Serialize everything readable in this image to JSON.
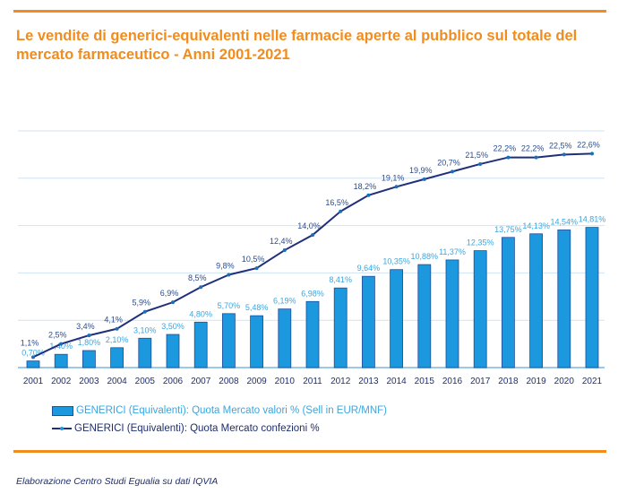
{
  "title": "Le vendite di generici-equivalenti  nelle farmacie aperte al pubblico sul totale del mercato farmaceutico - Anni 2001-2021",
  "footer": "Elaborazione  Centro Studi Egualia  su dati IQVIA",
  "chart_data": {
    "type": "bar+line",
    "categories": [
      "2001",
      "2002",
      "2003",
      "2004",
      "2005",
      "2006",
      "2007",
      "2008",
      "2009",
      "2010",
      "2011",
      "2012",
      "2013",
      "2014",
      "2015",
      "2016",
      "2017",
      "2018",
      "2019",
      "2020",
      "2021"
    ],
    "ylim": [
      0,
      25
    ],
    "grid": true,
    "legend": "bottom",
    "series": [
      {
        "name": "GENERICI (Equivalenti): Quota Mercato valori % (Sell in EUR/MNF)",
        "type": "bar",
        "color": "#1b98de",
        "values": [
          0.7,
          1.4,
          1.8,
          2.1,
          3.1,
          3.5,
          4.8,
          5.7,
          5.48,
          6.19,
          6.98,
          8.41,
          9.64,
          10.35,
          10.88,
          11.37,
          12.35,
          13.75,
          14.13,
          14.54,
          14.81
        ],
        "labels": [
          "0,70%",
          "1,40%",
          "1,80%",
          "2,10%",
          "3,10%",
          "3,50%",
          "4,80%",
          "5,70%",
          "5,48%",
          "6,19%",
          "6,98%",
          "8,41%",
          "9,64%",
          "10,35%",
          "10,88%",
          "11,37%",
          "12,35%",
          "13,75%",
          "14,13%",
          "14,54%",
          "14,81%"
        ]
      },
      {
        "name": "GENERICI (Equivalenti): Quota Mercato confezioni %",
        "type": "line",
        "color": "#1f2f7a",
        "values": [
          1.1,
          2.5,
          3.4,
          4.1,
          5.9,
          6.9,
          8.5,
          9.8,
          10.5,
          12.4,
          14.0,
          16.5,
          18.2,
          19.1,
          19.9,
          20.7,
          21.5,
          22.2,
          22.2,
          22.5,
          22.6
        ],
        "labels": [
          "1,1%",
          "2,5%",
          "3,4%",
          "4,1%",
          "5,9%",
          "6,9%",
          "8,5%",
          "9,8%",
          "10,5%",
          "12,4%",
          "14,0%",
          "16,5%",
          "18,2%",
          "19,1%",
          "19,9%",
          "20,7%",
          "21,5%",
          "22,2%",
          "22,2%",
          "22,5%",
          "22,6%"
        ]
      }
    ]
  }
}
